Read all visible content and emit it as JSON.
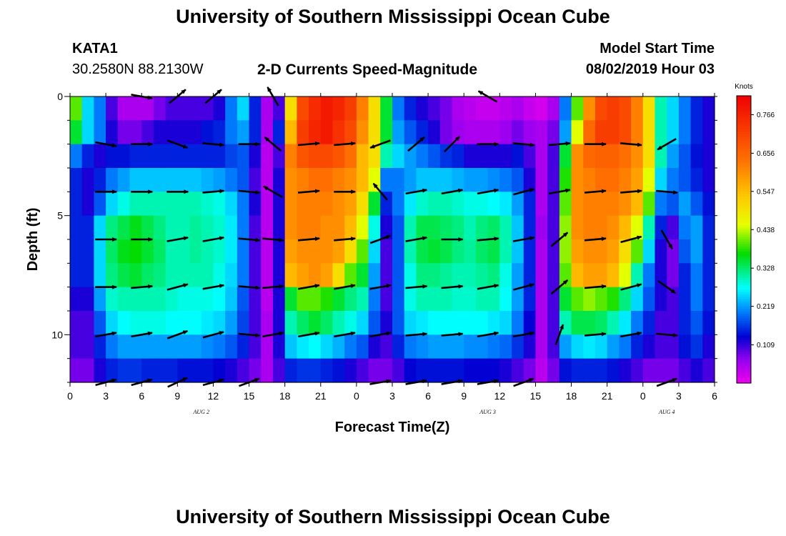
{
  "header": {
    "title_top": "University of Southern Mississippi Ocean Cube",
    "title_bottom": "University of Southern Mississippi Ocean Cube",
    "station": "KATA1",
    "coords": "30.2580N 88.2130W",
    "product": "2-D Currents Speed-Magnitude",
    "model_start_label": "Model Start Time",
    "model_start_value": "08/02/2019 Hour 03"
  },
  "chart_data": {
    "type": "heatmap",
    "title": "2-D Currents Speed-Magnitude",
    "xlabel": "Forecast Time(Z)",
    "ylabel": "Depth (ft)",
    "xlim": [
      0,
      54
    ],
    "ylim": [
      12,
      0
    ],
    "x_ticks": [
      "0",
      "3",
      "6",
      "9",
      "12",
      "15",
      "18",
      "21",
      "0",
      "3",
      "6",
      "9",
      "12",
      "15",
      "18",
      "21",
      "0",
      "3",
      "6"
    ],
    "y_ticks": [
      "0",
      "5",
      "10"
    ],
    "date_labels": [
      {
        "hour": 11,
        "text": "AUG 2"
      },
      {
        "hour": 35,
        "text": "AUG 3"
      },
      {
        "hour": 50,
        "text": "AUG 4"
      }
    ],
    "colorbar": {
      "unit": "Knots",
      "range": [
        0,
        0.82
      ],
      "ticks": [
        "0.766",
        "0.656",
        "0.547",
        "0.438",
        "0.328",
        "0.219",
        "0.109"
      ]
    },
    "depths_ft": [
      0.5,
      1.5,
      2.5,
      3.5,
      4.5,
      5.5,
      6.5,
      7.5,
      8.5,
      9.5,
      10.5,
      11.5
    ],
    "hours": [
      0,
      1,
      2,
      3,
      4,
      5,
      6,
      7,
      8,
      9,
      10,
      11,
      12,
      13,
      14,
      15,
      16,
      17,
      18,
      19,
      20,
      21,
      22,
      23,
      24,
      25,
      26,
      27,
      28,
      29,
      30,
      31,
      32,
      33,
      34,
      35,
      36,
      37,
      38,
      39,
      40,
      41,
      42,
      43,
      44,
      45,
      46,
      47,
      48,
      49,
      50,
      51,
      52,
      53
    ],
    "speed_knots": [
      [
        0.4,
        0.25,
        0.2,
        0.1,
        0.05,
        0.05,
        0.05,
        0.08,
        0.1,
        0.1,
        0.1,
        0.1,
        0.12,
        0.2,
        0.25,
        0.15,
        0.05,
        0.1,
        0.5,
        0.7,
        0.75,
        0.78,
        0.76,
        0.72,
        0.62,
        0.5,
        0.35,
        0.2,
        0.15,
        0.12,
        0.1,
        0.08,
        0.05,
        0.04,
        0.03,
        0.03,
        0.04,
        0.05,
        0.03,
        0.02,
        0.05,
        0.2,
        0.4,
        0.6,
        0.7,
        0.72,
        0.7,
        0.62,
        0.5,
        0.3,
        0.25,
        0.2,
        0.15,
        0.12
      ],
      [
        0.35,
        0.25,
        0.2,
        0.12,
        0.08,
        0.08,
        0.1,
        0.12,
        0.12,
        0.12,
        0.12,
        0.14,
        0.15,
        0.2,
        0.22,
        0.15,
        0.05,
        0.15,
        0.55,
        0.72,
        0.76,
        0.78,
        0.74,
        0.7,
        0.6,
        0.5,
        0.35,
        0.22,
        0.18,
        0.15,
        0.12,
        0.08,
        0.06,
        0.05,
        0.05,
        0.05,
        0.06,
        0.08,
        0.06,
        0.05,
        0.08,
        0.22,
        0.45,
        0.65,
        0.72,
        0.72,
        0.7,
        0.62,
        0.5,
        0.3,
        0.25,
        0.2,
        0.15,
        0.12
      ],
      [
        0.2,
        0.15,
        0.12,
        0.14,
        0.14,
        0.15,
        0.15,
        0.15,
        0.15,
        0.15,
        0.15,
        0.15,
        0.15,
        0.17,
        0.18,
        0.12,
        0.04,
        0.1,
        0.62,
        0.68,
        0.7,
        0.7,
        0.68,
        0.64,
        0.55,
        0.5,
        0.3,
        0.25,
        0.22,
        0.2,
        0.18,
        0.16,
        0.15,
        0.12,
        0.12,
        0.12,
        0.12,
        0.14,
        0.1,
        0.05,
        0.1,
        0.35,
        0.6,
        0.65,
        0.66,
        0.66,
        0.64,
        0.6,
        0.5,
        0.3,
        0.22,
        0.18,
        0.14,
        0.12
      ],
      [
        0.15,
        0.12,
        0.15,
        0.2,
        0.22,
        0.24,
        0.24,
        0.24,
        0.24,
        0.24,
        0.24,
        0.23,
        0.22,
        0.2,
        0.18,
        0.1,
        0.04,
        0.12,
        0.6,
        0.62,
        0.64,
        0.64,
        0.62,
        0.6,
        0.55,
        0.45,
        0.2,
        0.2,
        0.22,
        0.24,
        0.24,
        0.24,
        0.23,
        0.22,
        0.22,
        0.21,
        0.2,
        0.18,
        0.12,
        0.05,
        0.1,
        0.38,
        0.6,
        0.62,
        0.64,
        0.64,
        0.62,
        0.58,
        0.45,
        0.25,
        0.2,
        0.18,
        0.15,
        0.12
      ],
      [
        0.15,
        0.12,
        0.18,
        0.25,
        0.28,
        0.3,
        0.3,
        0.3,
        0.3,
        0.3,
        0.3,
        0.29,
        0.28,
        0.25,
        0.2,
        0.12,
        0.04,
        0.12,
        0.6,
        0.62,
        0.62,
        0.62,
        0.6,
        0.58,
        0.5,
        0.35,
        0.15,
        0.2,
        0.26,
        0.29,
        0.3,
        0.3,
        0.29,
        0.28,
        0.28,
        0.27,
        0.26,
        0.22,
        0.15,
        0.05,
        0.1,
        0.4,
        0.6,
        0.62,
        0.62,
        0.62,
        0.6,
        0.55,
        0.4,
        0.2,
        0.18,
        0.22,
        0.18,
        0.14
      ],
      [
        0.15,
        0.15,
        0.25,
        0.32,
        0.34,
        0.36,
        0.34,
        0.32,
        0.3,
        0.3,
        0.31,
        0.3,
        0.29,
        0.26,
        0.2,
        0.1,
        0.04,
        0.12,
        0.6,
        0.62,
        0.62,
        0.6,
        0.6,
        0.55,
        0.45,
        0.28,
        0.12,
        0.18,
        0.3,
        0.34,
        0.34,
        0.33,
        0.32,
        0.3,
        0.32,
        0.33,
        0.3,
        0.24,
        0.15,
        0.06,
        0.1,
        0.42,
        0.6,
        0.62,
        0.62,
        0.6,
        0.55,
        0.45,
        0.3,
        0.15,
        0.1,
        0.2,
        0.22,
        0.15
      ],
      [
        0.15,
        0.15,
        0.25,
        0.33,
        0.36,
        0.37,
        0.35,
        0.33,
        0.3,
        0.3,
        0.31,
        0.3,
        0.29,
        0.26,
        0.2,
        0.1,
        0.04,
        0.12,
        0.58,
        0.6,
        0.6,
        0.6,
        0.58,
        0.5,
        0.4,
        0.25,
        0.1,
        0.18,
        0.3,
        0.34,
        0.35,
        0.34,
        0.32,
        0.31,
        0.33,
        0.34,
        0.3,
        0.24,
        0.15,
        0.05,
        0.1,
        0.42,
        0.58,
        0.6,
        0.6,
        0.58,
        0.5,
        0.4,
        0.25,
        0.12,
        0.08,
        0.18,
        0.22,
        0.15
      ],
      [
        0.15,
        0.15,
        0.25,
        0.32,
        0.34,
        0.35,
        0.33,
        0.32,
        0.3,
        0.3,
        0.3,
        0.3,
        0.28,
        0.25,
        0.2,
        0.1,
        0.04,
        0.12,
        0.55,
        0.58,
        0.6,
        0.58,
        0.5,
        0.4,
        0.35,
        0.22,
        0.1,
        0.18,
        0.28,
        0.32,
        0.32,
        0.31,
        0.3,
        0.3,
        0.31,
        0.32,
        0.28,
        0.22,
        0.15,
        0.05,
        0.1,
        0.4,
        0.55,
        0.58,
        0.58,
        0.55,
        0.45,
        0.3,
        0.2,
        0.12,
        0.08,
        0.15,
        0.2,
        0.15
      ],
      [
        0.12,
        0.12,
        0.22,
        0.29,
        0.3,
        0.3,
        0.3,
        0.3,
        0.29,
        0.28,
        0.28,
        0.28,
        0.27,
        0.24,
        0.18,
        0.1,
        0.04,
        0.12,
        0.35,
        0.4,
        0.4,
        0.38,
        0.35,
        0.32,
        0.3,
        0.2,
        0.1,
        0.18,
        0.28,
        0.3,
        0.3,
        0.3,
        0.29,
        0.29,
        0.3,
        0.3,
        0.27,
        0.22,
        0.15,
        0.05,
        0.1,
        0.35,
        0.4,
        0.42,
        0.4,
        0.38,
        0.32,
        0.25,
        0.18,
        0.12,
        0.1,
        0.15,
        0.2,
        0.15
      ],
      [
        0.1,
        0.1,
        0.18,
        0.25,
        0.27,
        0.28,
        0.28,
        0.28,
        0.27,
        0.27,
        0.27,
        0.26,
        0.25,
        0.22,
        0.17,
        0.1,
        0.05,
        0.12,
        0.3,
        0.33,
        0.35,
        0.33,
        0.3,
        0.28,
        0.25,
        0.18,
        0.12,
        0.18,
        0.25,
        0.26,
        0.27,
        0.27,
        0.27,
        0.27,
        0.27,
        0.26,
        0.25,
        0.2,
        0.13,
        0.05,
        0.1,
        0.3,
        0.34,
        0.34,
        0.33,
        0.3,
        0.26,
        0.2,
        0.15,
        0.1,
        0.1,
        0.15,
        0.18,
        0.14
      ],
      [
        0.1,
        0.1,
        0.15,
        0.2,
        0.22,
        0.22,
        0.22,
        0.22,
        0.22,
        0.22,
        0.22,
        0.21,
        0.2,
        0.18,
        0.15,
        0.1,
        0.05,
        0.12,
        0.24,
        0.26,
        0.27,
        0.25,
        0.23,
        0.2,
        0.18,
        0.12,
        0.1,
        0.15,
        0.2,
        0.21,
        0.22,
        0.22,
        0.22,
        0.21,
        0.21,
        0.2,
        0.19,
        0.16,
        0.12,
        0.05,
        0.1,
        0.22,
        0.25,
        0.26,
        0.25,
        0.22,
        0.2,
        0.15,
        0.12,
        0.1,
        0.1,
        0.14,
        0.16,
        0.12
      ],
      [
        0.08,
        0.08,
        0.12,
        0.15,
        0.16,
        0.16,
        0.15,
        0.15,
        0.15,
        0.14,
        0.14,
        0.14,
        0.13,
        0.12,
        0.1,
        0.08,
        0.05,
        0.1,
        0.15,
        0.16,
        0.16,
        0.15,
        0.14,
        0.12,
        0.1,
        0.08,
        0.08,
        0.1,
        0.13,
        0.14,
        0.14,
        0.14,
        0.14,
        0.13,
        0.13,
        0.13,
        0.12,
        0.1,
        0.08,
        0.04,
        0.08,
        0.14,
        0.15,
        0.15,
        0.15,
        0.14,
        0.12,
        0.1,
        0.08,
        0.08,
        0.08,
        0.1,
        0.12,
        0.1
      ]
    ],
    "vector_depths_ft": [
      0,
      2,
      4,
      6,
      8,
      10,
      12
    ],
    "vector_hours": [
      3,
      6,
      9,
      12,
      15,
      17,
      20,
      23,
      26,
      29,
      32,
      35,
      38,
      41,
      44,
      47,
      50,
      53
    ],
    "vectors_deg": [
      [
        null,
        10,
        -40,
        -40,
        null,
        -120,
        null,
        null,
        null,
        null,
        null,
        -150,
        null,
        null,
        null,
        null,
        null,
        null
      ],
      [
        10,
        0,
        20,
        5,
        0,
        -140,
        -5,
        -5,
        160,
        -40,
        -45,
        0,
        5,
        -5,
        0,
        5,
        150,
        null
      ],
      [
        0,
        0,
        0,
        -5,
        5,
        -150,
        -5,
        0,
        -130,
        -10,
        -10,
        -10,
        -15,
        -10,
        -5,
        -5,
        5,
        null
      ],
      [
        0,
        0,
        -10,
        -10,
        5,
        5,
        -5,
        -5,
        -20,
        -10,
        0,
        -5,
        -10,
        -40,
        -5,
        -15,
        60,
        null
      ],
      [
        0,
        -5,
        -15,
        -10,
        5,
        -5,
        -10,
        -10,
        -10,
        -5,
        -5,
        -10,
        -15,
        -40,
        -5,
        -15,
        35,
        null
      ],
      [
        -10,
        -10,
        -20,
        -15,
        5,
        -10,
        -10,
        -10,
        -10,
        -5,
        -5,
        -10,
        -10,
        -70,
        -5,
        -10,
        5,
        null
      ],
      [
        -15,
        -15,
        -25,
        -15,
        -20,
        null,
        null,
        null,
        -10,
        -10,
        -10,
        -10,
        -20,
        null,
        null,
        null,
        -20,
        null
      ]
    ]
  }
}
